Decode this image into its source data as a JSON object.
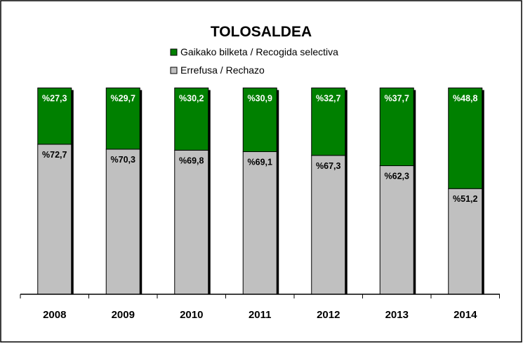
{
  "chart_data": {
    "type": "bar",
    "stacked": true,
    "title": "TOLOSALDEA",
    "categories": [
      "2008",
      "2009",
      "2010",
      "2011",
      "2012",
      "2013",
      "2014"
    ],
    "series": [
      {
        "name": "Errefusa / Rechazo",
        "color": "#c0c0c0",
        "values": [
          72.7,
          70.3,
          69.8,
          69.1,
          67.3,
          62.3,
          51.2
        ],
        "labels": [
          "%72,7",
          "%70,3",
          "%69,8",
          "%69,1",
          "%67,3",
          "%62,3",
          "%51,2"
        ]
      },
      {
        "name": "Gaikako bilketa / Recogida selectiva",
        "color": "#008000",
        "values": [
          27.3,
          29.7,
          30.2,
          30.9,
          32.7,
          37.7,
          48.8
        ],
        "labels": [
          "%27,3",
          "%29,7",
          "%30,2",
          "%30,9",
          "%32,7",
          "%37,7",
          "%48,8"
        ]
      }
    ],
    "legend": [
      {
        "label": "Gaikako bilketa / Recogida selectiva",
        "color": "#008000"
      },
      {
        "label": "Errefusa / Rechazo",
        "color": "#c0c0c0"
      }
    ],
    "legend_position": "top-center",
    "xlabel": "",
    "ylabel": "",
    "ylim": [
      0,
      100
    ],
    "grid": false
  }
}
